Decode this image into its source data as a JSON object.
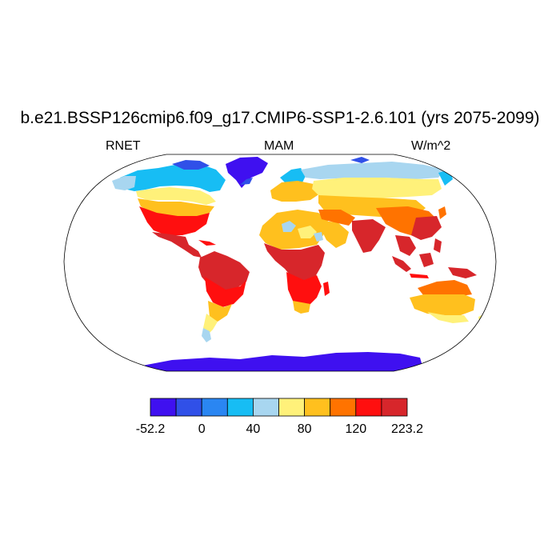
{
  "title": "b.e21.BSSP126cmip6.f09_g17.CMIP6-SSP1-2.6.101 (yrs 2075-2099)",
  "subtitle_left": "RNET",
  "subtitle_center": "MAM",
  "subtitle_right": "W/m^2",
  "colorbar": {
    "colors": [
      "#3f10f0",
      "#3050e8",
      "#2a86f2",
      "#17bdf4",
      "#a8d6f0",
      "#fff17a",
      "#ffc01e",
      "#ff7300",
      "#ff0f0f",
      "#d7262b"
    ],
    "tick_labels": [
      "-52.2",
      "0",
      "40",
      "80",
      "120",
      "223.2"
    ]
  },
  "map": {
    "projection": "Robinson",
    "variable": "RNET",
    "season": "MAM",
    "units": "W/m^2"
  }
}
